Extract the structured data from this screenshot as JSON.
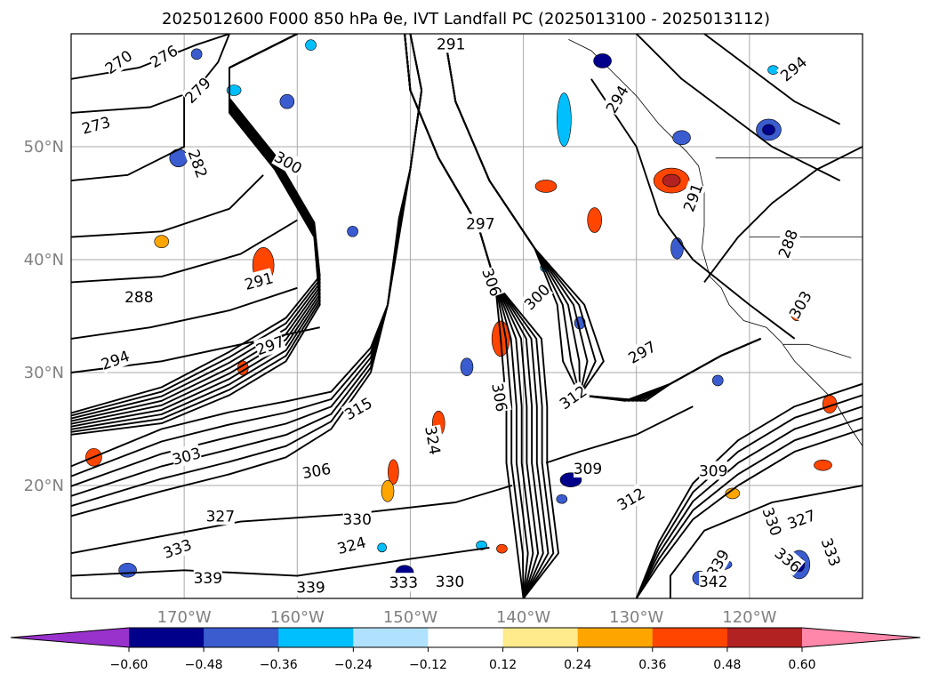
{
  "chart_data": {
    "type": "contour_map",
    "title": "2025012600 F000 850 hPa θe, IVT Landfall PC (2025013100 - 2025013112)",
    "lon_range": [
      -180,
      -110
    ],
    "lat_range": [
      10,
      60
    ],
    "grid": true,
    "x_ticks": [
      "170°W",
      "160°W",
      "150°W",
      "140°W",
      "130°W",
      "120°W"
    ],
    "y_ticks": [
      "50°N",
      "40°N",
      "30°N",
      "20°N"
    ],
    "contour_field": "850 hPa θe",
    "contour_levels": [
      270,
      273,
      276,
      279,
      282,
      285,
      288,
      291,
      294,
      297,
      300,
      303,
      306,
      309,
      312,
      315,
      318,
      321,
      324,
      327,
      330,
      333,
      336,
      339,
      342
    ],
    "contour_labels": [
      {
        "text": "270",
        "lon": -175.8,
        "lat": 57.5,
        "angle": -35
      },
      {
        "text": "276",
        "lon": -171.8,
        "lat": 58.0,
        "angle": -30
      },
      {
        "text": "273",
        "lon": -177.8,
        "lat": 51.9,
        "angle": -15
      },
      {
        "text": "279",
        "lon": -168.8,
        "lat": 55.0,
        "angle": -45
      },
      {
        "text": "282",
        "lon": -168.8,
        "lat": 48.5,
        "angle": 70
      },
      {
        "text": "300",
        "lon": -160.8,
        "lat": 48.6,
        "angle": 30
      },
      {
        "text": "291",
        "lon": -146.4,
        "lat": 59.1,
        "angle": 0
      },
      {
        "text": "297",
        "lon": -143.8,
        "lat": 43.2,
        "angle": 0
      },
      {
        "text": "291",
        "lon": -163.4,
        "lat": 38.1,
        "angle": -15
      },
      {
        "text": "288",
        "lon": -174.0,
        "lat": 36.7,
        "angle": 0
      },
      {
        "text": "294",
        "lon": -176.1,
        "lat": 31.1,
        "angle": -20
      },
      {
        "text": "297",
        "lon": -162.4,
        "lat": 32.4,
        "angle": -20
      },
      {
        "text": "306",
        "lon": -142.8,
        "lat": 38.0,
        "angle": 70
      },
      {
        "text": "300",
        "lon": -138.8,
        "lat": 36.7,
        "angle": -45
      },
      {
        "text": "306",
        "lon": -142.1,
        "lat": 27.8,
        "angle": 80
      },
      {
        "text": "312",
        "lon": -135.6,
        "lat": 27.8,
        "angle": -35
      },
      {
        "text": "297",
        "lon": -129.5,
        "lat": 31.8,
        "angle": -30
      },
      {
        "text": "291",
        "lon": -125.0,
        "lat": 45.5,
        "angle": -70
      },
      {
        "text": "294",
        "lon": -131.7,
        "lat": 54.2,
        "angle": -60
      },
      {
        "text": "294",
        "lon": -116.1,
        "lat": 56.9,
        "angle": -40
      },
      {
        "text": "288",
        "lon": -116.6,
        "lat": 41.4,
        "angle": -70
      },
      {
        "text": "303",
        "lon": -169.8,
        "lat": 22.6,
        "angle": -15
      },
      {
        "text": "306",
        "lon": -158.3,
        "lat": 21.3,
        "angle": -10
      },
      {
        "text": "315",
        "lon": -154.6,
        "lat": 26.8,
        "angle": -30
      },
      {
        "text": "324",
        "lon": -148.0,
        "lat": 24.0,
        "angle": 80
      },
      {
        "text": "309",
        "lon": -134.3,
        "lat": 21.5,
        "angle": 0
      },
      {
        "text": "309",
        "lon": -123.2,
        "lat": 21.3,
        "angle": 0
      },
      {
        "text": "312",
        "lon": -130.5,
        "lat": 18.8,
        "angle": -30
      },
      {
        "text": "327",
        "lon": -166.8,
        "lat": 17.3,
        "angle": 0
      },
      {
        "text": "330",
        "lon": -154.7,
        "lat": 17.0,
        "angle": 0
      },
      {
        "text": "324",
        "lon": -155.2,
        "lat": 14.7,
        "angle": -15
      },
      {
        "text": "333",
        "lon": -170.6,
        "lat": 14.4,
        "angle": -20
      },
      {
        "text": "339",
        "lon": -167.9,
        "lat": 11.8,
        "angle": 0
      },
      {
        "text": "339",
        "lon": -158.8,
        "lat": 11.0,
        "angle": 0
      },
      {
        "text": "333",
        "lon": -150.6,
        "lat": 11.4,
        "angle": 0
      },
      {
        "text": "330",
        "lon": -146.5,
        "lat": 11.5,
        "angle": 0
      },
      {
        "text": "339",
        "lon": -122.8,
        "lat": 13.1,
        "angle": -60
      },
      {
        "text": "342",
        "lon": -123.2,
        "lat": 11.5,
        "angle": 0
      },
      {
        "text": "330",
        "lon": -118.0,
        "lat": 16.8,
        "angle": 70
      },
      {
        "text": "327",
        "lon": -115.4,
        "lat": 17.0,
        "angle": -20
      },
      {
        "text": "336",
        "lon": -116.6,
        "lat": 13.4,
        "angle": 40
      },
      {
        "text": "333",
        "lon": -112.8,
        "lat": 14.1,
        "angle": 70
      },
      {
        "text": "303",
        "lon": -115.5,
        "lat": 36.0,
        "angle": -60
      }
    ],
    "colorbar": {
      "variable": "IVT Landfall PC",
      "ticks": [
        -0.6,
        -0.48,
        -0.36,
        -0.24,
        -0.12,
        0.12,
        0.24,
        0.36,
        0.48,
        0.6
      ],
      "tick_labels": [
        "−0.60",
        "−0.48",
        "−0.36",
        "−0.24",
        "−0.12",
        "0.12",
        "0.24",
        "0.36",
        "0.48",
        "0.60"
      ],
      "colors": [
        "#9932cc",
        "#00008b",
        "#3a5ccf",
        "#00bfff",
        "#b0e2ff",
        "#ffffff",
        "#ffea8c",
        "#ffa500",
        "#ff4500",
        "#b22222",
        "#ff88aa"
      ],
      "extend": "both"
    }
  }
}
